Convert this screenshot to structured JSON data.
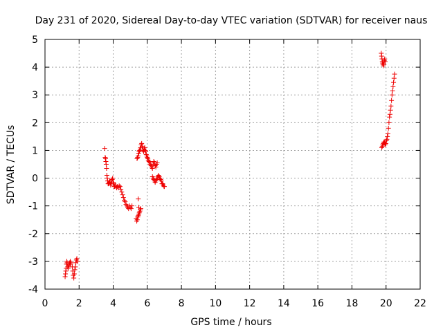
{
  "chart_data": {
    "type": "scatter",
    "title": "Day 231 of 2020, Sidereal Day-to-day VTEC variation (SDTVAR) for receiver naus",
    "xlabel": "GPS time / hours",
    "ylabel": "SDTVAR / TECUs",
    "xlim": [
      0,
      22
    ],
    "ylim": [
      -4,
      5
    ],
    "xticks": [
      "0",
      "2",
      "4",
      "6",
      "8",
      "10",
      "12",
      "14",
      "16",
      "18",
      "20",
      "22"
    ],
    "yticks": [
      "-4",
      "-3",
      "-2",
      "-1",
      "0",
      "1",
      "2",
      "3",
      "4",
      "5"
    ],
    "grid": true,
    "marker": "+",
    "color": "#ee0000",
    "series": [
      {
        "x": [
          1.18,
          1.2,
          1.22,
          1.24,
          1.26,
          1.28,
          1.3,
          1.33,
          1.36,
          1.39,
          1.42,
          1.45,
          1.48,
          1.5,
          1.52,
          1.6,
          1.63,
          1.66,
          1.69,
          1.72,
          1.75,
          1.78,
          1.81,
          1.84,
          1.87,
          1.9,
          3.5,
          3.53,
          3.55,
          3.57,
          3.59,
          3.61,
          3.63,
          3.65,
          3.67,
          3.7,
          3.73,
          3.76,
          3.79,
          3.82,
          3.85,
          3.88,
          3.91,
          3.94,
          3.97,
          4.0,
          4.03,
          4.06,
          4.1,
          4.15,
          4.2,
          4.25,
          4.3,
          4.35,
          4.4,
          4.45,
          4.5,
          4.55,
          4.6,
          4.65,
          4.7,
          4.75,
          4.8,
          4.85,
          4.9,
          4.95,
          5.0,
          5.05,
          5.1,
          5.35,
          5.38,
          5.41,
          5.44,
          5.47,
          5.5,
          5.53,
          5.56,
          5.59,
          5.62,
          5.47,
          5.5,
          5.4,
          5.43,
          5.46,
          5.49,
          5.52,
          5.55,
          5.58,
          5.61,
          5.64,
          5.67,
          5.7,
          5.73,
          5.76,
          5.79,
          5.82,
          5.85,
          5.88,
          5.91,
          5.94,
          5.97,
          6.0,
          6.03,
          6.06,
          6.1,
          6.14,
          6.18,
          6.22,
          6.26,
          6.3,
          6.34,
          6.38,
          6.42,
          6.46,
          6.5,
          6.54,
          6.58,
          6.3,
          6.34,
          6.38,
          6.42,
          6.46,
          6.5,
          6.54,
          6.58,
          6.62,
          6.66,
          6.7,
          6.74,
          6.78,
          6.82,
          6.86,
          6.9,
          6.94,
          6.98,
          7.0,
          19.72,
          19.74,
          19.76,
          19.78,
          19.8,
          19.82,
          19.84,
          19.86,
          19.88,
          19.9,
          19.92,
          19.95,
          19.75,
          19.78,
          19.81,
          19.84,
          19.87,
          19.9,
          19.93,
          19.96,
          19.99,
          20.02,
          20.05,
          20.08,
          20.11,
          20.14,
          20.17,
          20.2,
          20.23,
          20.26,
          20.29,
          20.32,
          20.35,
          20.38,
          20.41,
          20.44,
          20.47,
          20.5
        ],
        "y": [
          -3.55,
          -3.45,
          -3.35,
          -3.25,
          -3.1,
          -3.0,
          -3.05,
          -3.2,
          -3.25,
          -3.15,
          -3.1,
          -3.05,
          -3.0,
          -3.1,
          -3.05,
          -3.2,
          -3.35,
          -3.5,
          -3.6,
          -3.45,
          -3.3,
          -3.2,
          -3.05,
          -2.95,
          -2.9,
          -3.0,
          1.07,
          0.75,
          0.7,
          0.6,
          0.5,
          0.35,
          0.1,
          0.0,
          -0.1,
          -0.2,
          -0.2,
          -0.15,
          -0.1,
          -0.15,
          -0.25,
          -0.2,
          -0.1,
          -0.05,
          0.0,
          -0.15,
          -0.2,
          -0.3,
          -0.3,
          -0.25,
          -0.35,
          -0.3,
          -0.35,
          -0.28,
          -0.3,
          -0.4,
          -0.5,
          -0.6,
          -0.7,
          -0.8,
          -0.85,
          -0.95,
          -1.0,
          -1.05,
          -1.1,
          -1.0,
          -1.05,
          -1.1,
          -1.0,
          -1.45,
          -1.55,
          -1.5,
          -1.4,
          -1.35,
          -1.3,
          -1.25,
          -1.2,
          -1.15,
          -1.1,
          -0.75,
          -1.05,
          0.7,
          0.75,
          0.8,
          0.9,
          0.95,
          1.0,
          1.05,
          1.1,
          1.2,
          1.25,
          1.15,
          1.05,
          1.0,
          0.95,
          1.05,
          1.1,
          1.0,
          0.95,
          0.85,
          0.8,
          0.75,
          0.7,
          0.65,
          0.6,
          0.55,
          0.5,
          0.45,
          0.4,
          0.35,
          0.5,
          0.6,
          0.55,
          0.45,
          0.4,
          0.5,
          0.55,
          0.05,
          0.0,
          -0.05,
          -0.1,
          -0.15,
          -0.1,
          -0.05,
          0.0,
          0.05,
          0.1,
          0.05,
          0.0,
          -0.05,
          -0.1,
          -0.2,
          -0.2,
          -0.25,
          -0.3,
          -0.3,
          4.5,
          4.4,
          4.3,
          4.2,
          4.15,
          4.1,
          4.05,
          4.1,
          4.2,
          4.25,
          4.3,
          4.2,
          1.1,
          1.15,
          1.2,
          1.25,
          1.3,
          1.3,
          1.25,
          1.2,
          1.25,
          1.35,
          1.4,
          1.5,
          1.6,
          1.8,
          2.0,
          2.2,
          2.3,
          2.45,
          2.6,
          2.8,
          3.0,
          3.15,
          3.3,
          3.45,
          3.6,
          3.75
        ]
      }
    ]
  }
}
